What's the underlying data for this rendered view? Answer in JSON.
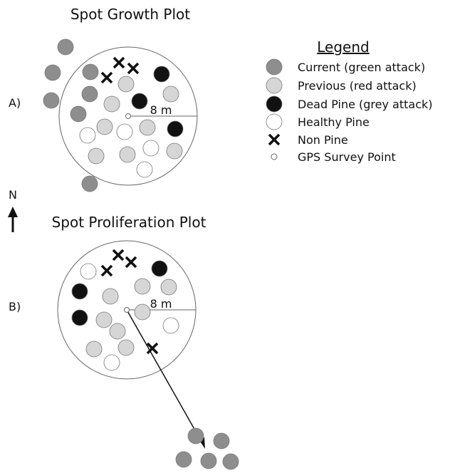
{
  "plot_a": {
    "title": "Spot Growth Plot",
    "panel": "A)",
    "scale": "8 m"
  },
  "plot_b": {
    "title": "Spot Proliferation Plot",
    "panel": "B)",
    "scale": "8 m"
  },
  "north": "N",
  "legend": {
    "title": "Legend",
    "items": [
      "Current (green attack)",
      "Previous (red attack)",
      "Dead Pine (grey attack)",
      "Healthy Pine",
      "Non Pine",
      "GPS Survey Point"
    ]
  }
}
